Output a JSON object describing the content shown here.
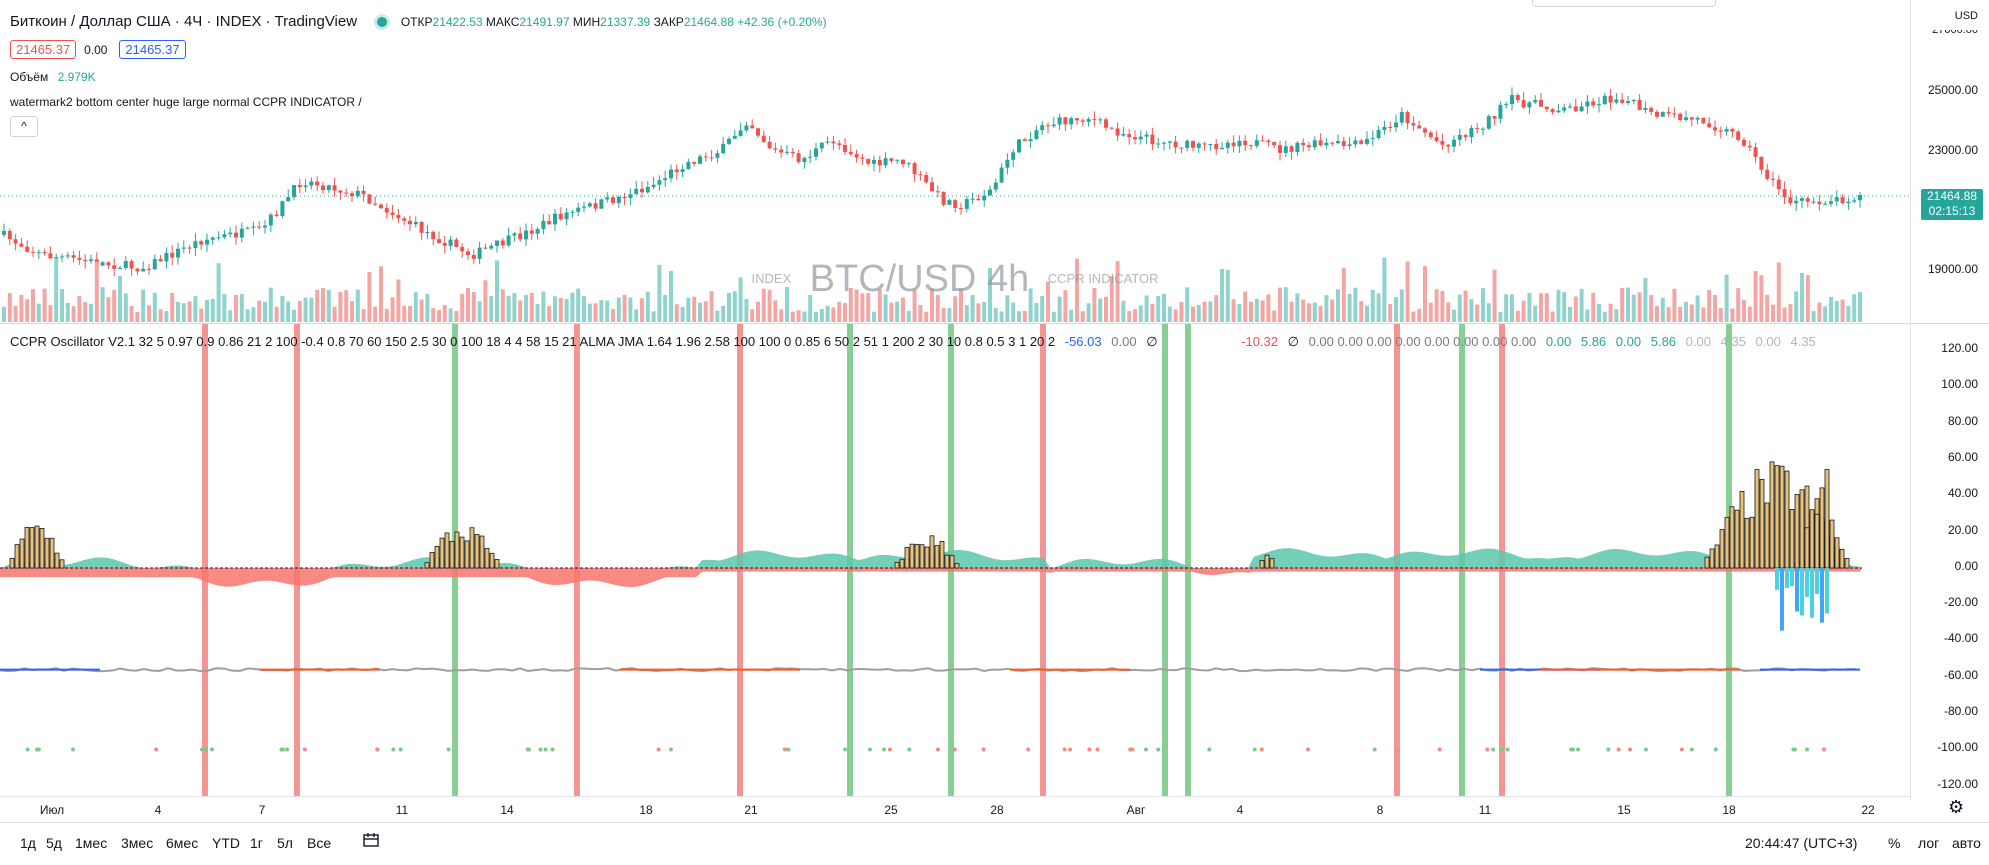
{
  "header": {
    "symbol_title": "Биткоин / Доллар США · 4Ч · INDEX · TradingView",
    "ohlc": [
      {
        "k": "ОТКР",
        "v": "21422.53"
      },
      {
        "k": "МАКС",
        "v": "21491.97"
      },
      {
        "k": "МИН",
        "v": "21337.39"
      },
      {
        "k": "ЗАКР",
        "v": "21464.88 +42.36 (+0.20%)"
      }
    ],
    "bid": "21465.37",
    "spread": "0.00",
    "ask": "21465.37",
    "volume_label": "Объём",
    "volume_value": "2.979K",
    "indicator_label": "watermark2 bottom center huge large normal CCPR INDICATOR /",
    "collapse_icon": "^"
  },
  "watermark": {
    "left": "INDEX",
    "center": "BTC/USD 4h",
    "right": "CCPR INDICATOR"
  },
  "oscillator_legend": {
    "params": "CCPR Oscillator V2.1 32 5 0.97 0.9 0.86 21 2 100 -0.4 0.8 70 60 150 2.5 30 0 100 18 4 4 58 15 21 ALMA JMA 1.64 1.96 2.58 100 100 0 0.85 6 50 2 51 1 200 2 30 10 0.8 0.5 3 1 20 2",
    "v1": "-56.03",
    "v2": "0.00",
    "v3": "∅",
    "v4": "-10.32",
    "v5": "∅",
    "zeros": "0.00 0.00 0.00 0.00 0.00 0.00 0.00 0.00",
    "g1": "0.00",
    "g2": "5.86",
    "g3": "0.00",
    "g4": "5.86",
    "gray1": "0.00",
    "gray2": "4.35",
    "gray3": "0.00",
    "gray4": "4.35"
  },
  "price_axis": {
    "currency": "USD",
    "labels": [
      "25000.00",
      "23000.00",
      "19000.00"
    ],
    "top_partial": "27000.00",
    "last_price": "21464.88",
    "countdown": "02:15:13"
  },
  "osc_axis": {
    "labels": [
      "120.00",
      "100.00",
      "80.00",
      "60.00",
      "40.00",
      "20.00",
      "0.00",
      "-20.00",
      "-40.00",
      "-60.00",
      "-80.00",
      "-100.00",
      "-120.00"
    ]
  },
  "time_axis": {
    "labels": [
      "Июл",
      "4",
      "7",
      "11",
      "14",
      "18",
      "21",
      "25",
      "28",
      "Авг",
      "4",
      "8",
      "11",
      "15",
      "18",
      "22"
    ]
  },
  "bottom_bar": {
    "ranges": [
      "1д",
      "5д",
      "1мес",
      "3мес",
      "6мес",
      "YTD",
      "1г",
      "5л",
      "Все"
    ],
    "clock": "20:44:47 (UTC+3)",
    "percent": "%",
    "log": "лог",
    "auto": "авто"
  },
  "colors": {
    "up": "#26a69a",
    "down": "#ef5350",
    "bg": "#ffffff"
  }
}
